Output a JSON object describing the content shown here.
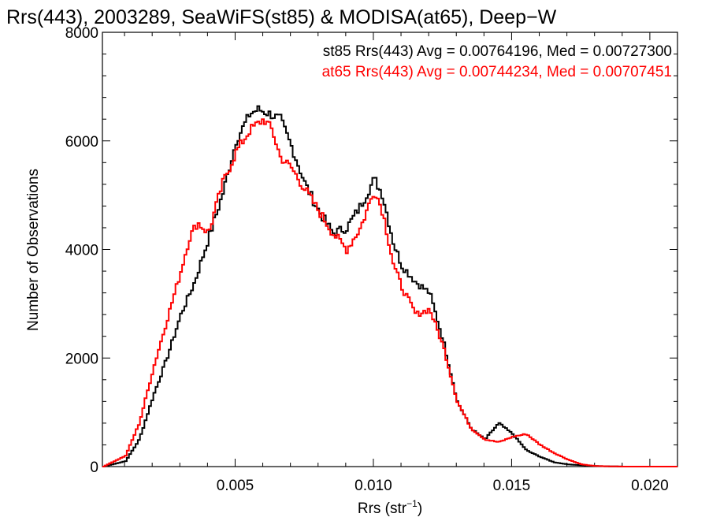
{
  "chart_data": {
    "type": "line",
    "title": "Rrs(443), 2003289, SeaWiFS(st85) & MODISA(at65), Deep−W",
    "xlabel": "Rrs (str",
    "xlabel_sup": "−1",
    "xlabel_end": ")",
    "ylabel": "Number of Observations",
    "xlim": [
      0.0002,
      0.021
    ],
    "ylim": [
      0,
      8000
    ],
    "xticks": [
      0.005,
      0.01,
      0.015,
      0.02
    ],
    "xtick_labels": [
      "0.005",
      "0.010",
      "0.015",
      "0.020"
    ],
    "yticks": [
      0,
      2000,
      4000,
      6000,
      8000
    ],
    "ytick_labels": [
      "0",
      "2000",
      "4000",
      "6000",
      "8000"
    ],
    "grid": false,
    "legend_position": "top-right",
    "annotations": [
      "st85 Rrs(443) Avg = 0.00764196, Med = 0.00727300",
      "at65 Rrs(443) Avg = 0.00744234, Med = 0.00707451"
    ],
    "series": [
      {
        "color": "#000000",
        "x": [
          0.0002,
          0.001,
          0.0015,
          0.002,
          0.0025,
          0.003,
          0.0035,
          0.004,
          0.0045,
          0.005,
          0.0055,
          0.0058,
          0.0062,
          0.0066,
          0.007,
          0.0075,
          0.008,
          0.0085,
          0.009,
          0.0095,
          0.01,
          0.0103,
          0.0107,
          0.011,
          0.0115,
          0.012,
          0.0125,
          0.013,
          0.0135,
          0.014,
          0.0145,
          0.015,
          0.0155,
          0.016,
          0.0165,
          0.017,
          0.018,
          0.019,
          0.021
        ],
        "values": [
          0,
          100,
          500,
          1300,
          2000,
          2800,
          3400,
          4200,
          5000,
          6000,
          6500,
          6580,
          6500,
          6400,
          5900,
          5200,
          4700,
          4300,
          4400,
          4800,
          5300,
          5000,
          4100,
          3700,
          3400,
          3200,
          2300,
          1200,
          700,
          500,
          800,
          600,
          300,
          180,
          80,
          40,
          10,
          0,
          0
        ]
      },
      {
        "color": "#ff0000",
        "x": [
          0.0002,
          0.001,
          0.0015,
          0.002,
          0.0025,
          0.003,
          0.0033,
          0.0036,
          0.004,
          0.0045,
          0.005,
          0.0055,
          0.006,
          0.0063,
          0.0066,
          0.007,
          0.0075,
          0.008,
          0.0085,
          0.009,
          0.0095,
          0.01,
          0.0103,
          0.0107,
          0.011,
          0.0115,
          0.012,
          0.0125,
          0.013,
          0.0135,
          0.014,
          0.0145,
          0.015,
          0.0155,
          0.016,
          0.0165,
          0.017,
          0.0175,
          0.018,
          0.019,
          0.021
        ],
        "values": [
          0,
          200,
          800,
          1800,
          2700,
          3600,
          4200,
          4500,
          4300,
          5200,
          5800,
          6200,
          6400,
          6200,
          5700,
          5500,
          5100,
          4700,
          4300,
          4000,
          4400,
          5100,
          4700,
          3700,
          3300,
          2800,
          2900,
          2200,
          1200,
          700,
          500,
          450,
          550,
          600,
          400,
          250,
          130,
          40,
          10,
          0,
          0
        ]
      }
    ]
  }
}
